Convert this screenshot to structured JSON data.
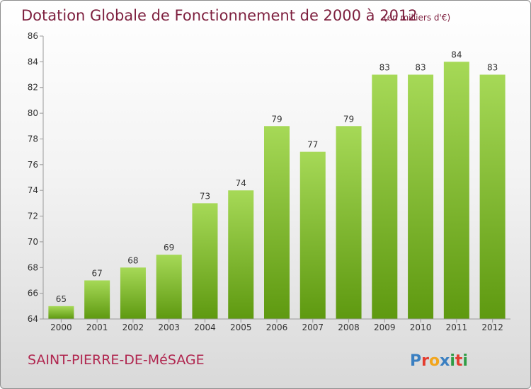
{
  "title": "Dotation Globale de Fonctionnement de 2000 à 2012",
  "unit_note": "(en milliers d'€)",
  "commune": "SAINT-PIERRE-DE-MéSAGE",
  "logo": {
    "letters": [
      "P",
      "r",
      "o",
      "x",
      "i",
      "t",
      "i"
    ],
    "colors": [
      "#3a7fc1",
      "#e33c2f",
      "#f2a51c",
      "#3a7fc1",
      "#2f9d45",
      "#e33c2f",
      "#2f9d45"
    ]
  },
  "colors": {
    "bar_light": "#a6d957",
    "bar_dark": "#5e9910",
    "title": "#7d1f3e",
    "commune": "#b0264f"
  },
  "chart_data": {
    "type": "bar",
    "title": "Dotation Globale de Fonctionnement de 2000 à 2012",
    "ylabel": "",
    "xlabel": "",
    "categories": [
      "2000",
      "2001",
      "2002",
      "2003",
      "2004",
      "2005",
      "2006",
      "2007",
      "2008",
      "2009",
      "2010",
      "2011",
      "2012"
    ],
    "values": [
      65,
      67,
      68,
      69,
      73,
      74,
      79,
      77,
      79,
      83,
      83,
      84,
      83
    ],
    "ylim": [
      64,
      86
    ],
    "yticks": [
      64,
      66,
      68,
      70,
      72,
      74,
      76,
      78,
      80,
      82,
      84,
      86
    ],
    "grid": false,
    "legend": "none"
  }
}
